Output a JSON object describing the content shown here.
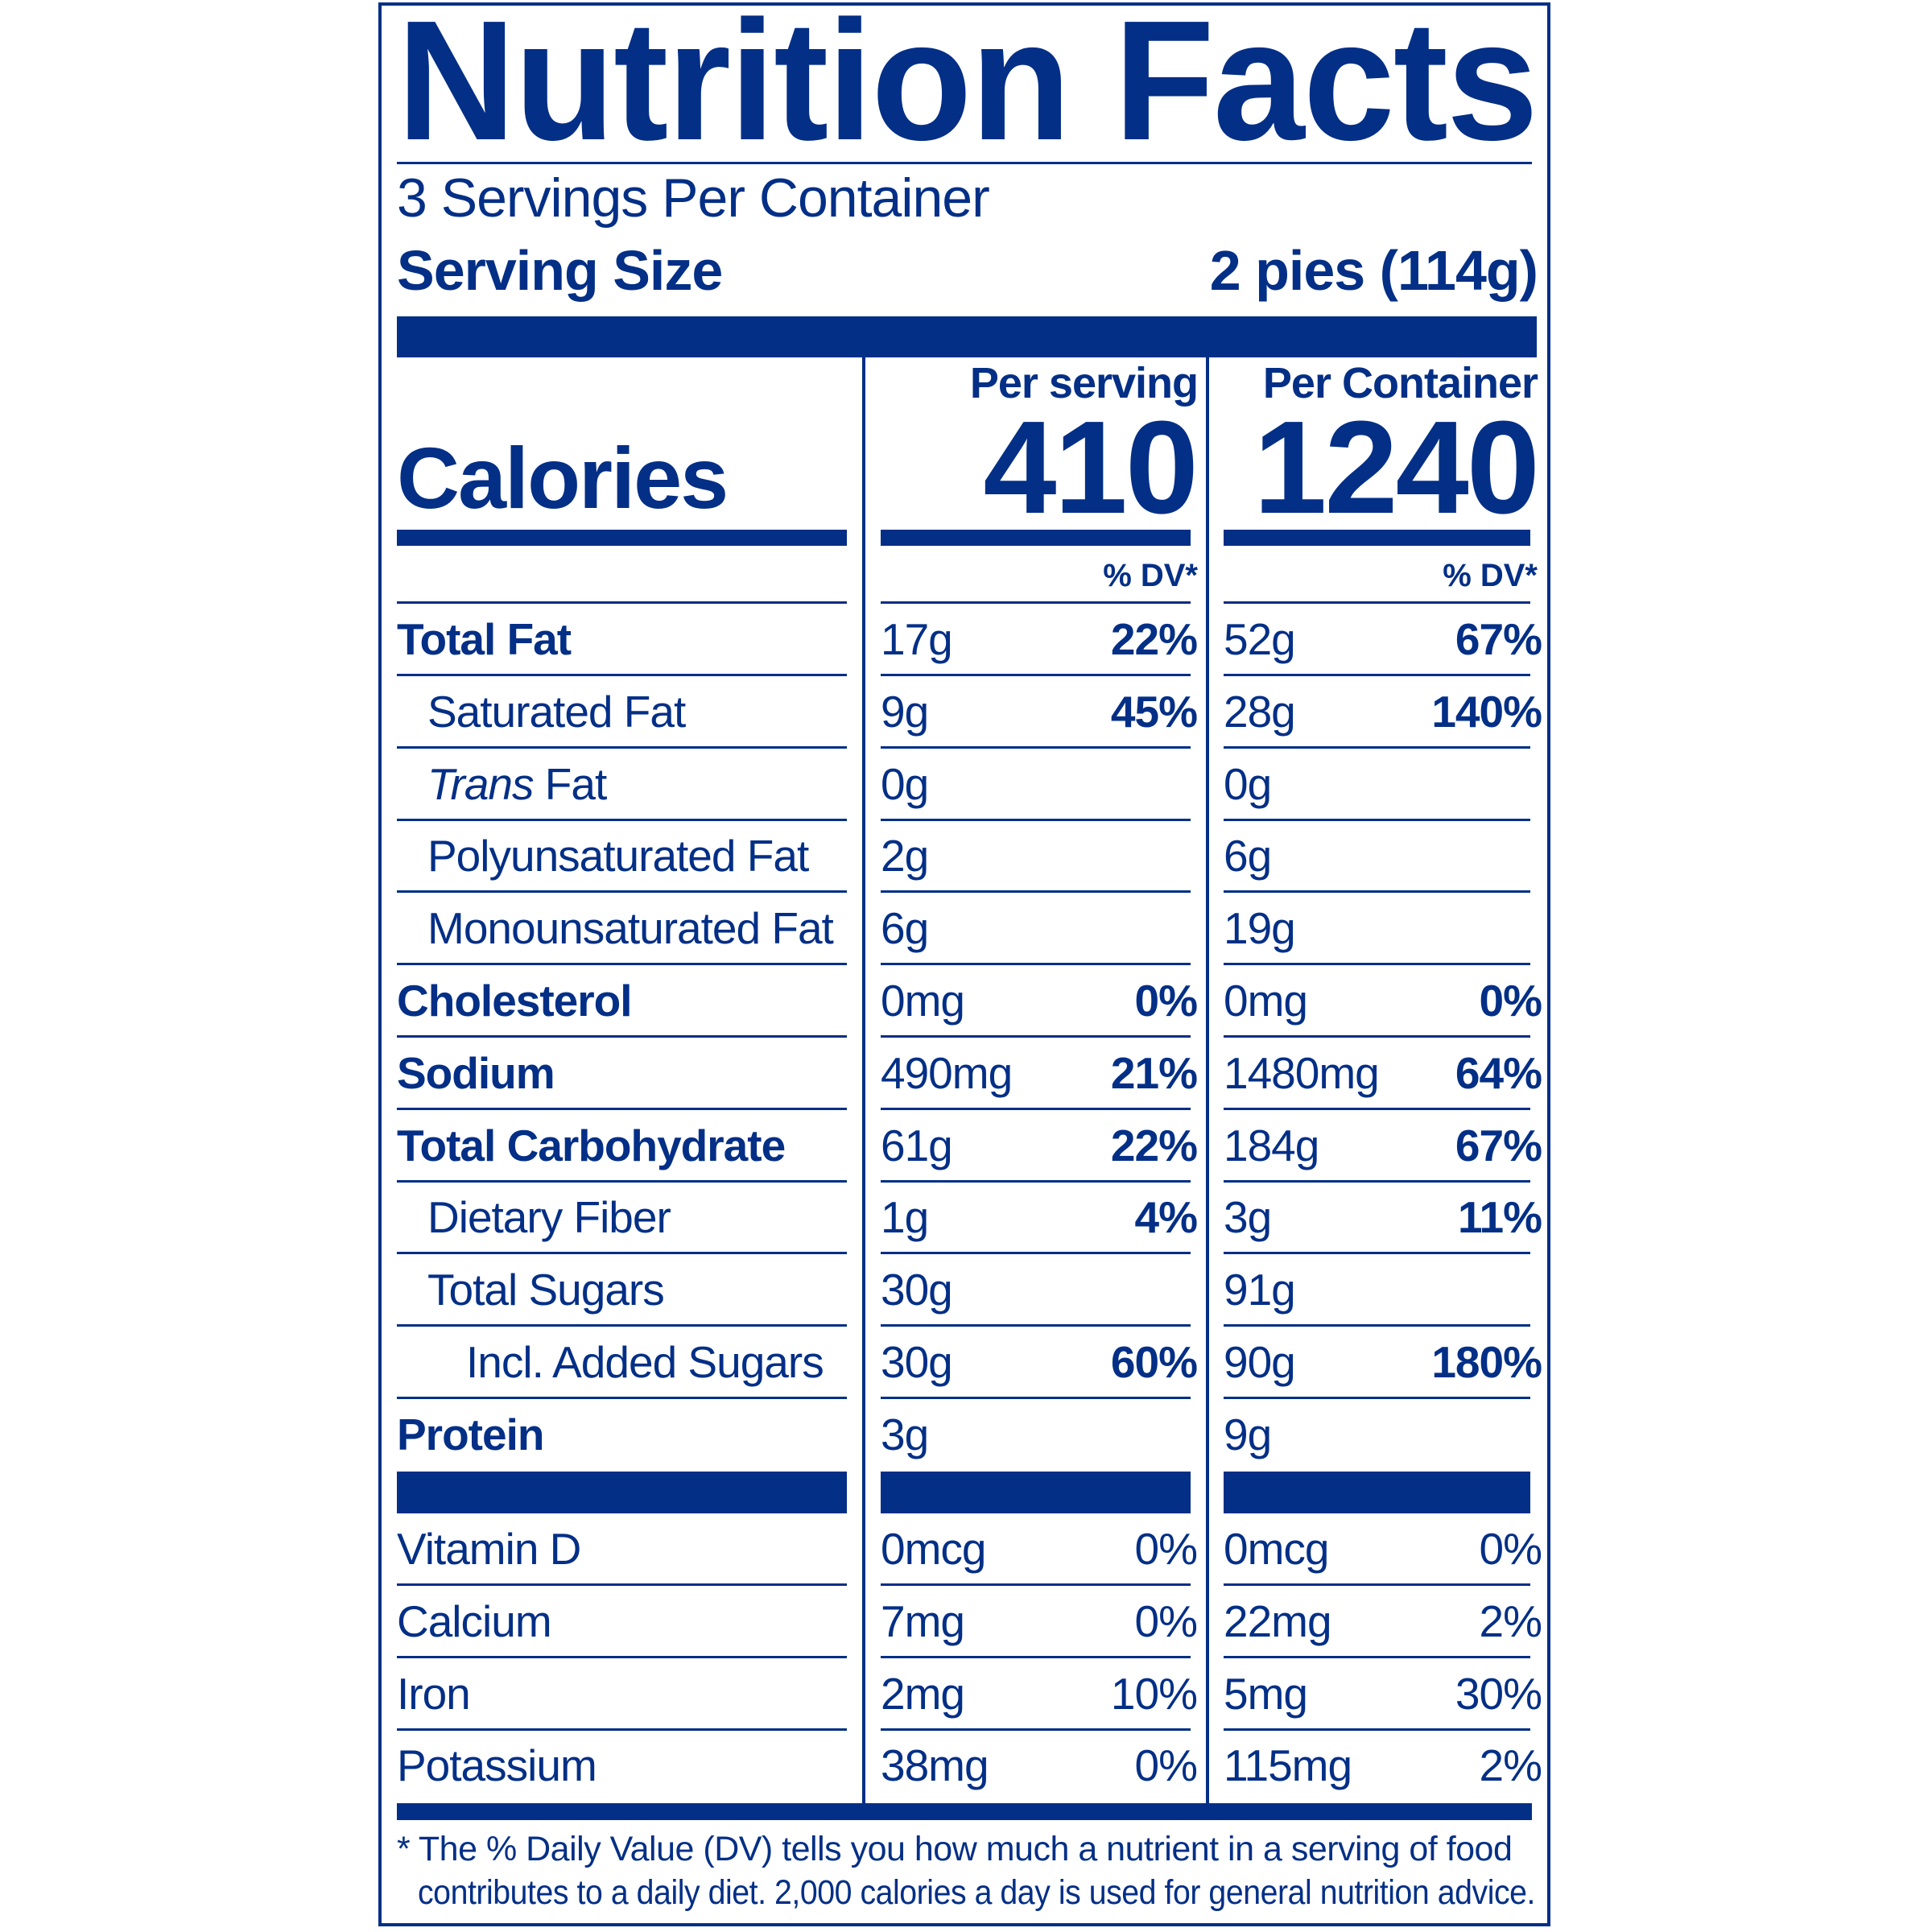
{
  "colors": {
    "ink": "#032f86",
    "background": "#ffffff"
  },
  "title": "Nutrition Facts",
  "servings_per_container": "3 Servings Per Container",
  "serving_size_label": "Serving Size",
  "serving_size_value": "2 pies (114g)",
  "columns": {
    "per_serving": "Per serving",
    "per_container": "Per Container"
  },
  "calories": {
    "label": "Calories",
    "per_serving": "410",
    "per_container": "1240"
  },
  "dv_header": "% DV*",
  "nutrients": [
    {
      "name": "Total Fat",
      "bold": true,
      "indent": 0,
      "serving": "17g",
      "serving_dv": "22%",
      "container": "52g",
      "container_dv": "67%"
    },
    {
      "name": "Saturated Fat",
      "bold": false,
      "indent": 1,
      "serving": "9g",
      "serving_dv": "45%",
      "container": "28g",
      "container_dv": "140%"
    },
    {
      "name_italic": "Trans",
      "name": " Fat",
      "bold": false,
      "indent": 1,
      "serving": "0g",
      "serving_dv": "",
      "container": "0g",
      "container_dv": ""
    },
    {
      "name": "Polyunsaturated Fat",
      "bold": false,
      "indent": 1,
      "serving": "2g",
      "serving_dv": "",
      "container": "6g",
      "container_dv": ""
    },
    {
      "name": "Monounsaturated Fat",
      "bold": false,
      "indent": 1,
      "serving": "6g",
      "serving_dv": "",
      "container": "19g",
      "container_dv": ""
    },
    {
      "name": "Cholesterol",
      "bold": true,
      "indent": 0,
      "serving": "0mg",
      "serving_dv": "0%",
      "container": "0mg",
      "container_dv": "0%"
    },
    {
      "name": "Sodium",
      "bold": true,
      "indent": 0,
      "serving": "490mg",
      "serving_dv": "21%",
      "container": "1480mg",
      "container_dv": "64%"
    },
    {
      "name": "Total Carbohydrate",
      "bold": true,
      "indent": 0,
      "serving": "61g",
      "serving_dv": "22%",
      "container": "184g",
      "container_dv": "67%"
    },
    {
      "name": "Dietary Fiber",
      "bold": false,
      "indent": 1,
      "serving": "1g",
      "serving_dv": "4%",
      "container": "3g",
      "container_dv": "11%"
    },
    {
      "name": "Total Sugars",
      "bold": false,
      "indent": 1,
      "serving": "30g",
      "serving_dv": "",
      "container": "91g",
      "container_dv": ""
    },
    {
      "name": "Incl. Added Sugars",
      "bold": false,
      "indent": 2,
      "serving": "30g",
      "serving_dv": "60%",
      "container": "90g",
      "container_dv": "180%"
    },
    {
      "name": "Protein",
      "bold": true,
      "indent": 0,
      "serving": "3g",
      "serving_dv": "",
      "container": "9g",
      "container_dv": ""
    }
  ],
  "vitamins": [
    {
      "name": "Vitamin D",
      "serving": "0mcg",
      "serving_dv": "0%",
      "container": "0mcg",
      "container_dv": "0%"
    },
    {
      "name": "Calcium",
      "serving": "7mg",
      "serving_dv": "0%",
      "container": "22mg",
      "container_dv": "2%"
    },
    {
      "name": "Iron",
      "serving": "2mg",
      "serving_dv": "10%",
      "container": "5mg",
      "container_dv": "30%"
    },
    {
      "name": "Potassium",
      "serving": "38mg",
      "serving_dv": "0%",
      "container": "115mg",
      "container_dv": "2%"
    }
  ],
  "footnote": [
    "* The % Daily Value (DV) tells you how much a nutrient in a serving of food",
    "contributes to a daily diet. 2,000 calories a day is used for general nutrition advice."
  ]
}
